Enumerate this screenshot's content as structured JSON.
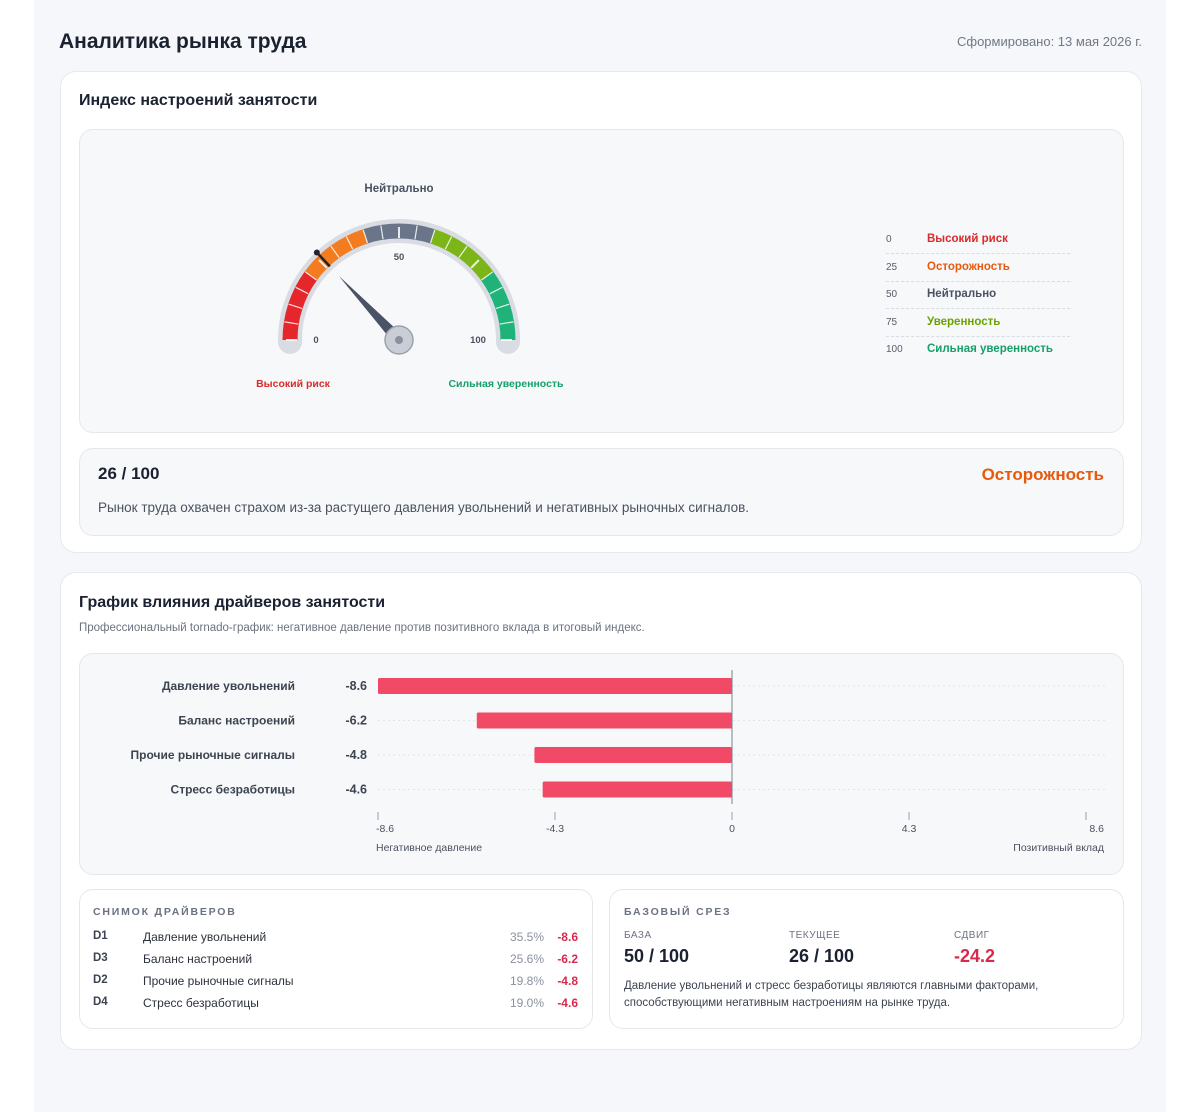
{
  "header": {
    "title": "Аналитика рынка труда",
    "generated": "Сформировано: 13 мая 2026 г."
  },
  "sentiment": {
    "title": "Индекс настроений занятости",
    "gauge": {
      "value": 26,
      "min": 0,
      "max": 100,
      "top_label": "Нейтрально",
      "tick_min": "0",
      "tick_mid": "50",
      "tick_max": "100",
      "left_caption": "Высокий риск",
      "right_caption": "Сильная уверенность",
      "zone_colors": [
        "#e5262b",
        "#f37c20",
        "#6b7589",
        "#7cb518",
        "#1fb37a"
      ]
    },
    "legend": [
      {
        "value": "0",
        "label": "Высокий риск",
        "color": "#d92b2b"
      },
      {
        "value": "25",
        "label": "Осторожность",
        "color": "#e8590c"
      },
      {
        "value": "50",
        "label": "Нейтрально",
        "color": "#4a5160"
      },
      {
        "value": "75",
        "label": "Уверенность",
        "color": "#6aa300"
      },
      {
        "value": "100",
        "label": "Сильная уверенность",
        "color": "#15a06a"
      }
    ],
    "score": "26 / 100",
    "zone": "Осторожность",
    "description": "Рынок труда охвачен страхом из-за растущего давления увольнений и негативных рыночных сигналов."
  },
  "drivers": {
    "title": "График влияния драйверов занятости",
    "subtitle": "Профессиональный tornado-график: негативное давление против позитивного вклада в итоговый индекс.",
    "chart_data": {
      "type": "bar",
      "orientation": "horizontal",
      "categories": [
        "Давление увольнений",
        "Баланс настроений",
        "Прочие рыночные сигналы",
        "Стресс безработицы"
      ],
      "values": [
        -8.6,
        -6.2,
        -4.8,
        -4.6
      ],
      "value_labels": [
        "-8.6",
        "-6.2",
        "-4.8",
        "-4.6"
      ],
      "xlim": [
        -8.6,
        8.6
      ],
      "ticks": [
        "-8.6",
        "-4.3",
        "0",
        "4.3",
        "8.6"
      ],
      "tick_values": [
        -8.6,
        -4.3,
        0,
        4.3,
        8.6
      ],
      "left_axis_label": "Негативное давление",
      "right_axis_label": "Позитивный вклад",
      "bar_color": "#f04a67"
    },
    "snapshot": {
      "title": "СНИМОК ДРАЙВЕРОВ",
      "rows": [
        {
          "code": "D1",
          "label": "Давление увольнений",
          "pct": "35.5%",
          "value": "-8.6"
        },
        {
          "code": "D3",
          "label": "Баланс настроений",
          "pct": "25.6%",
          "value": "-6.2"
        },
        {
          "code": "D2",
          "label": "Прочие рыночные сигналы",
          "pct": "19.8%",
          "value": "-4.8"
        },
        {
          "code": "D4",
          "label": "Стресс безработицы",
          "pct": "19.0%",
          "value": "-4.6"
        }
      ]
    },
    "baseline": {
      "title": "БАЗОВЫЙ СРЕЗ",
      "base_label": "БАЗА",
      "base_value": "50 / 100",
      "current_label": "ТЕКУЩЕЕ",
      "current_value": "26 / 100",
      "shift_label": "СДВИГ",
      "shift_value": "-24.2",
      "description": "Давление увольнений и стресс безработицы являются главными факторами, способствующими негативным настроениям на рынке труда."
    }
  }
}
